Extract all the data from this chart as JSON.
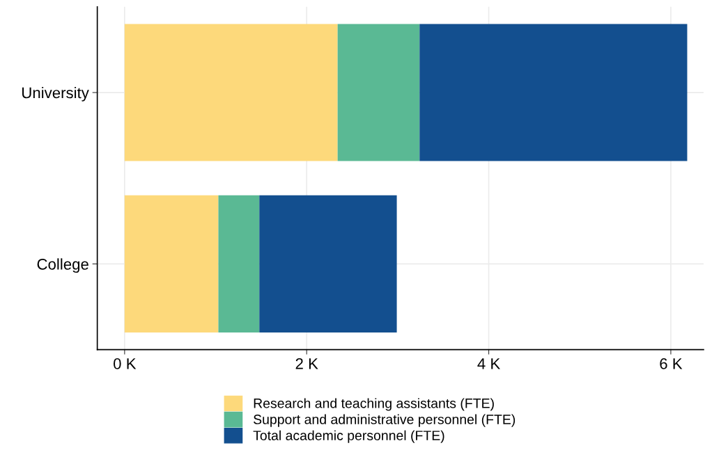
{
  "chart_data": {
    "type": "bar",
    "orientation": "horizontal",
    "stacked": true,
    "categories": [
      "University",
      "College"
    ],
    "series": [
      {
        "name": "Research and teaching assistants (FTE)",
        "color": "#fdd97b",
        "values": [
          2340,
          1030
        ]
      },
      {
        "name": "Support and administrative personnel (FTE)",
        "color": "#5ab994",
        "values": [
          900,
          450
        ]
      },
      {
        "name": "Total academic personnel (FTE)",
        "color": "#134f8f",
        "values": [
          2940,
          1510
        ]
      }
    ],
    "xlim": [
      -300,
      6360
    ],
    "xticks": [
      {
        "value": 0,
        "label": "0 K"
      },
      {
        "value": 2000,
        "label": "2 K"
      },
      {
        "value": 4000,
        "label": "4 K"
      },
      {
        "value": 6000,
        "label": "6 K"
      }
    ],
    "grid": true,
    "legend": "bottom"
  }
}
